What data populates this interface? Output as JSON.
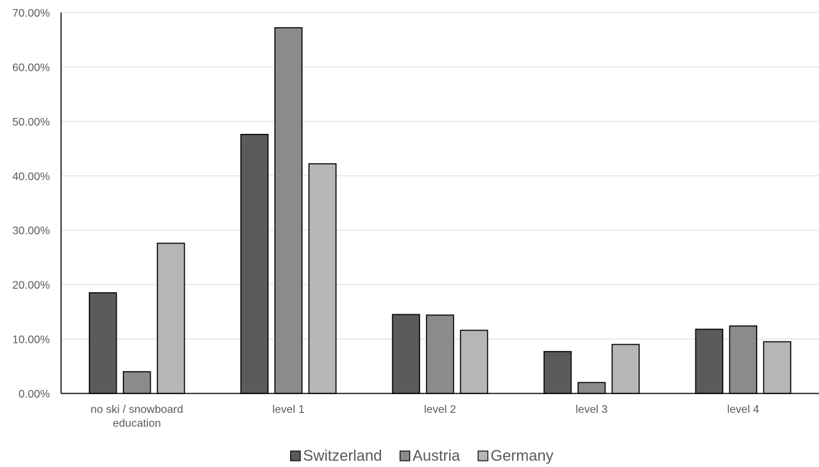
{
  "chart_data": {
    "type": "bar",
    "title": "",
    "xlabel": "",
    "ylabel": "",
    "categories": [
      [
        "no ski / snowboard",
        "education"
      ],
      [
        "level 1"
      ],
      [
        "level 2"
      ],
      [
        "level 3"
      ],
      [
        "level 4"
      ]
    ],
    "series": [
      {
        "name": "Switzerland",
        "color": "#5b5b5d",
        "values": [
          18.5,
          47.6,
          14.5,
          7.7,
          11.8
        ]
      },
      {
        "name": "Austria",
        "color": "#8b8b8d",
        "values": [
          4.0,
          67.2,
          14.4,
          2.0,
          12.4
        ]
      },
      {
        "name": "Germany",
        "color": "#b6b6b8",
        "values": [
          27.6,
          42.2,
          11.6,
          9.0,
          9.5
        ]
      }
    ],
    "ylim": [
      0,
      70
    ],
    "yticks": [
      0,
      10,
      20,
      30,
      40,
      50,
      60,
      70
    ],
    "ytick_labels": [
      "0.00%",
      "10.00%",
      "20.00%",
      "30.00%",
      "40.00%",
      "50.00%",
      "60.00%",
      "70.00%"
    ],
    "grid": true,
    "legend_position": "bottom-center"
  }
}
